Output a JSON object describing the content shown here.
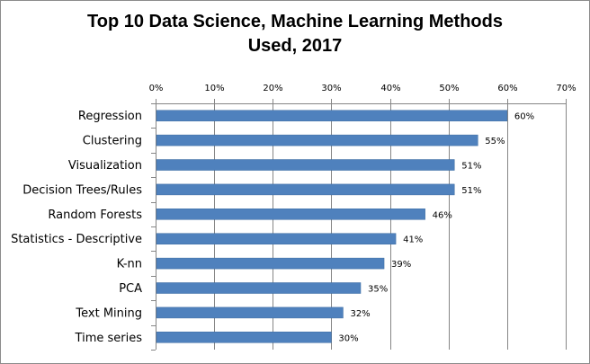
{
  "chart_data": {
    "type": "bar",
    "orientation": "horizontal",
    "title_lines": [
      "Top 10 Data Science, Machine Learning Methods",
      "Used, 2017"
    ],
    "categories": [
      "Regression",
      "Clustering",
      "Visualization",
      "Decision Trees/Rules",
      "Random Forests",
      "Statistics - Descriptive",
      "K-nn",
      "PCA",
      "Text Mining",
      "Time series"
    ],
    "values": [
      60,
      55,
      51,
      51,
      46,
      41,
      39,
      35,
      32,
      30
    ],
    "value_labels": [
      "60%",
      "55%",
      "51%",
      "51%",
      "46%",
      "41%",
      "39%",
      "35%",
      "32%",
      "30%"
    ],
    "xlim": [
      0,
      70
    ],
    "x_ticks": [
      0,
      10,
      20,
      30,
      40,
      50,
      60,
      70
    ],
    "x_tick_labels": [
      "0%",
      "10%",
      "20%",
      "30%",
      "40%",
      "50%",
      "60%",
      "70%"
    ],
    "x_axis_position": "top",
    "grid": "vertical",
    "legend": "none",
    "bar_color": "#4f81bd",
    "bar_edge_color": "#3a6aa0",
    "grid_color": "#868686",
    "axis_color": "#868686"
  }
}
